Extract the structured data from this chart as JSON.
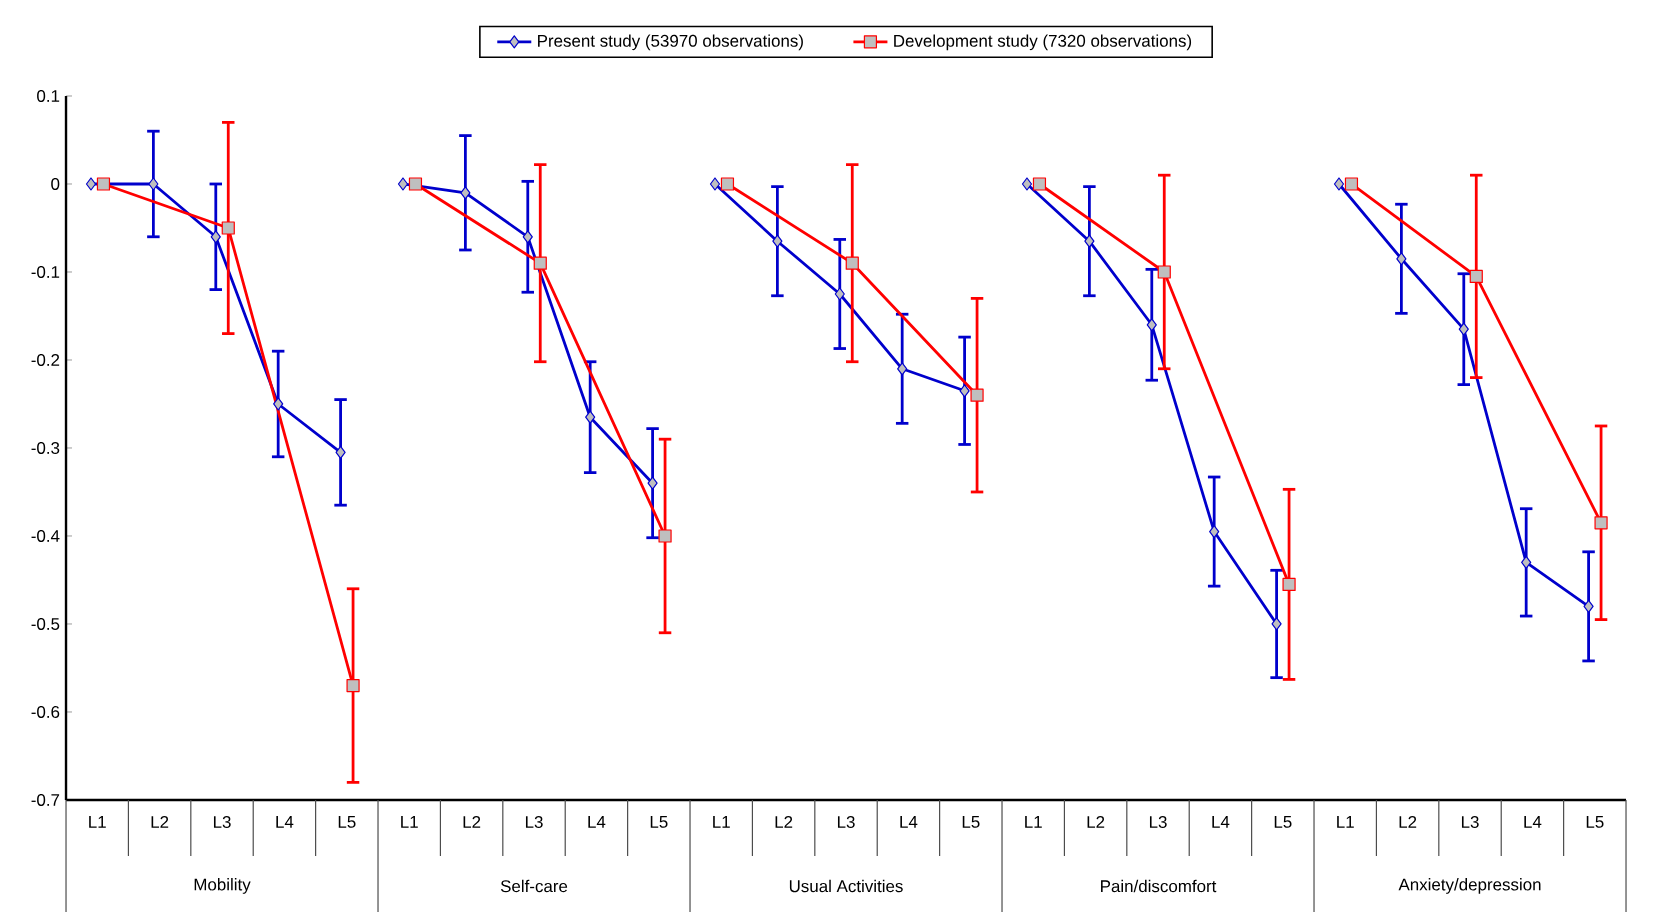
{
  "chart_data": {
    "type": "line",
    "categories": [
      "L1",
      "L2",
      "L3",
      "L4",
      "L5",
      "L1",
      "L2",
      "L3",
      "L4",
      "L5",
      "L1",
      "L2",
      "L3",
      "L4",
      "L5",
      "L1",
      "L2",
      "L3",
      "L4",
      "L5",
      "L1",
      "L2",
      "L3",
      "L4",
      "L5"
    ],
    "annotations": [
      "Mobility",
      "Self-care",
      "Usual Activities",
      "Pain/discomfort",
      "Anxiety/depression"
    ],
    "series": [
      {
        "name": "Present study (53970 observations)",
        "color": "#0000cc",
        "marker": "diamond",
        "values": [
          0,
          0,
          -0.06,
          -0.25,
          -0.305,
          0,
          -0.01,
          -0.06,
          -0.265,
          -0.34,
          0,
          -0.065,
          -0.125,
          -0.21,
          -0.235,
          0,
          -0.065,
          -0.16,
          -0.395,
          -0.5,
          0,
          -0.085,
          -0.165,
          -0.43,
          -0.48
        ],
        "errors": [
          null,
          0.06,
          0.06,
          0.06,
          0.06,
          null,
          0.065,
          0.063,
          0.063,
          0.062,
          null,
          0.062,
          0.062,
          0.062,
          0.061,
          null,
          0.062,
          0.063,
          0.062,
          0.061,
          null,
          0.062,
          0.063,
          0.061,
          0.062
        ]
      },
      {
        "name": "Development study (7320 observations)",
        "color": "#ff0000",
        "marker": "square",
        "values": [
          0,
          null,
          -0.05,
          null,
          -0.57,
          0,
          null,
          -0.09,
          null,
          -0.4,
          0,
          null,
          -0.09,
          null,
          -0.24,
          0,
          null,
          -0.1,
          null,
          -0.455,
          0,
          null,
          -0.105,
          null,
          -0.385
        ],
        "errors": [
          null,
          null,
          0.12,
          null,
          0.11,
          null,
          null,
          0.112,
          null,
          0.11,
          null,
          null,
          0.112,
          null,
          0.11,
          null,
          null,
          0.11,
          null,
          0.108,
          null,
          null,
          0.115,
          null,
          0.11
        ]
      }
    ],
    "ylim": [
      -0.7,
      0.1
    ],
    "yticks": [
      0.1,
      0,
      -0.1,
      -0.2,
      -0.3,
      -0.4,
      -0.5,
      -0.6,
      -0.7
    ],
    "legend": "top",
    "grid": false
  }
}
